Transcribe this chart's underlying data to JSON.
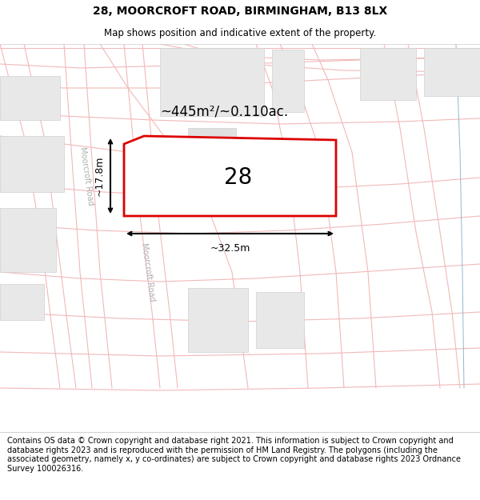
{
  "title_line1": "28, MOORCROFT ROAD, BIRMINGHAM, B13 8LX",
  "title_line2": "Map shows position and indicative extent of the property.",
  "footer_text": "Contains OS data © Crown copyright and database right 2021. This information is subject to Crown copyright and database rights 2023 and is reproduced with the permission of HM Land Registry. The polygons (including the associated geometry, namely x, y co-ordinates) are subject to Crown copyright and database rights 2023 Ordnance Survey 100026316.",
  "area_label": "~445m²/~0.110ac.",
  "property_number": "28",
  "dim_width": "~32.5m",
  "dim_height": "~17.8m",
  "road_label": "Moorcroft Road",
  "map_bg": "#ffffff",
  "road_color": "#f2b8b8",
  "road_lw": 0.8,
  "building_color": "#e8e8e8",
  "building_edge": "#d0d0d0",
  "property_edge_color": "#dd0000",
  "dim_color": "#111111",
  "title_fontsize": 10,
  "subtitle_fontsize": 8.5,
  "footer_fontsize": 7.0,
  "road_label_color": "#b0b0b0",
  "road_label_fontsize": 7.0,
  "area_label_fontsize": 12,
  "prop_number_fontsize": 20,
  "dim_fontsize": 9
}
